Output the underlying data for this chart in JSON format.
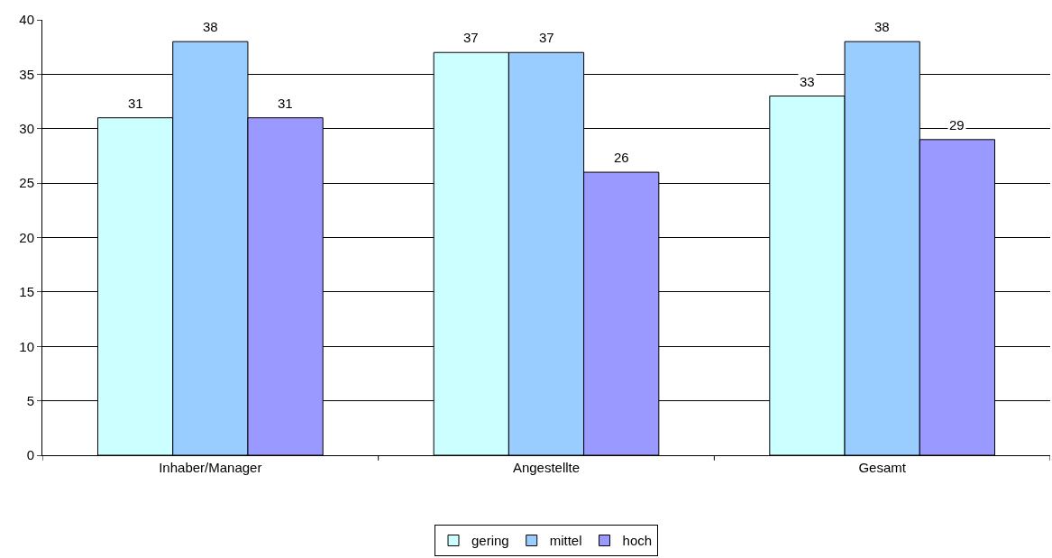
{
  "chart_data": {
    "type": "bar",
    "categories": [
      "Inhaber/Manager",
      "Angestellte",
      "Gesamt"
    ],
    "series": [
      {
        "name": "gering",
        "color": "#ccffff",
        "values": [
          31,
          37,
          33
        ]
      },
      {
        "name": "mittel",
        "color": "#99ccff",
        "values": [
          38,
          37,
          38
        ]
      },
      {
        "name": "hoch",
        "color": "#9999ff",
        "values": [
          31,
          26,
          29
        ]
      }
    ],
    "ylim": [
      0,
      40
    ],
    "yticks": [
      0,
      5,
      10,
      15,
      20,
      25,
      30,
      35,
      40
    ],
    "grid": "y",
    "legend": "bottom",
    "data_labels": true
  }
}
